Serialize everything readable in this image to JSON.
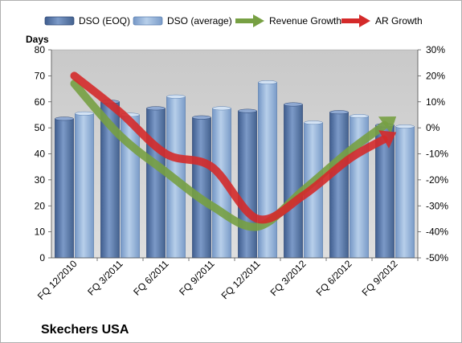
{
  "chart_data": {
    "type": "bar",
    "title": "Skechers USA",
    "ylabel": "Days",
    "categories": [
      "FQ 12/2010",
      "FQ 3/2011",
      "FQ 6/2011",
      "FQ 9/2011",
      "FQ 12/2011",
      "FQ 3/2012",
      "FQ 6/2012",
      "FQ 9/2012"
    ],
    "ylim": [
      0,
      80
    ],
    "y_ticks": [
      0,
      10,
      20,
      30,
      40,
      50,
      60,
      70,
      80
    ],
    "y2lim": [
      -50,
      30
    ],
    "y2_ticks": [
      "-50%",
      "-40%",
      "-30%",
      "-20%",
      "-10%",
      "0%",
      "10%",
      "20%",
      "30%"
    ],
    "grid": false,
    "legend_position": "top",
    "series": [
      {
        "name": "DSO (EOQ)",
        "kind": "bar",
        "axis": "left",
        "color": "#4f6d9e",
        "values": [
          53.5,
          60,
          57.5,
          54,
          56.5,
          59,
          56,
          51
        ]
      },
      {
        "name": "DSO (average)",
        "kind": "bar",
        "axis": "left",
        "color": "#87a9d3",
        "values": [
          55.5,
          55,
          62,
          57.5,
          67.5,
          52,
          54.5,
          50.5
        ]
      },
      {
        "name": "Revenue Growth",
        "kind": "arrow-line",
        "axis": "right",
        "unit": "%",
        "color": "#77a043",
        "values": [
          17,
          -3,
          -17,
          -30,
          -38,
          -24,
          -9,
          4
        ]
      },
      {
        "name": "AR Growth",
        "kind": "arrow-line",
        "axis": "right",
        "unit": "%",
        "color": "#d42a2a",
        "values": [
          20,
          6,
          -10,
          -15,
          -35,
          -26,
          -12,
          -2
        ]
      }
    ]
  }
}
